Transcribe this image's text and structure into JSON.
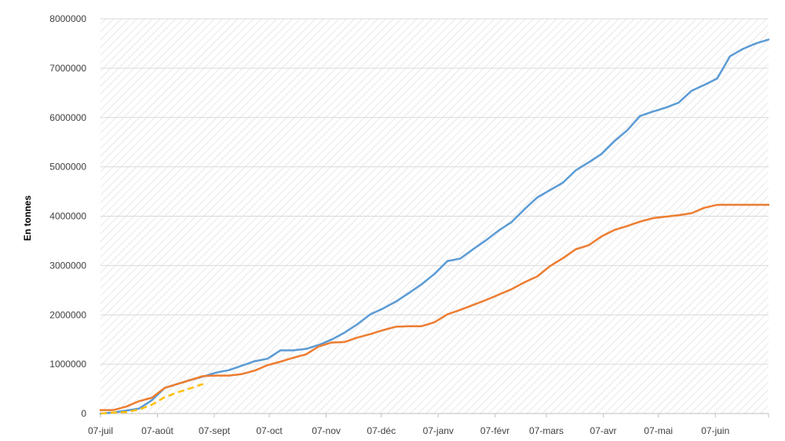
{
  "chart_data": {
    "type": "line",
    "title": "",
    "ylabel": "En tonnes",
    "xlabel": "",
    "ylim": [
      0,
      8000000
    ],
    "y_ticks": [
      0,
      1000000,
      2000000,
      3000000,
      4000000,
      5000000,
      6000000,
      7000000,
      8000000
    ],
    "y_tick_labels": [
      "0",
      "1000000",
      "2000000",
      "3000000",
      "4000000",
      "5000000",
      "6000000",
      "7000000",
      "8000000"
    ],
    "x_tick_labels": [
      "07-juil",
      "07-août",
      "07-sept",
      "07-oct",
      "07-nov",
      "07-déc",
      "07-janv",
      "07-févr",
      "07-mars",
      "07-avr",
      "07-mai",
      "07-juin"
    ],
    "x_tick_weeks": [
      0,
      4.43,
      8.86,
      13.14,
      17.57,
      21.86,
      26.29,
      30.71,
      34.71,
      39.14,
      43.43,
      47.86
    ],
    "x_range_weeks": [
      0,
      52
    ],
    "background": "diagonal hatch",
    "grid": "horizontal",
    "legend": "none",
    "series": [
      {
        "color": "#5B9BD5",
        "style": "solid",
        "x_week": [
          0,
          1,
          2,
          3,
          4,
          5,
          6,
          7,
          8,
          9,
          10,
          11,
          12,
          13,
          14,
          15,
          16,
          17,
          18,
          19,
          20,
          21,
          22,
          23,
          24,
          25,
          26,
          27,
          28,
          29,
          30,
          31,
          32,
          33,
          34,
          35,
          36,
          37,
          38,
          39,
          40,
          41,
          42,
          43,
          44,
          45,
          46,
          47,
          48,
          49,
          50,
          51,
          52
        ],
        "values": [
          0,
          20000,
          60000,
          100000,
          270000,
          520000,
          600000,
          680000,
          750000,
          830000,
          880000,
          970000,
          1060000,
          1110000,
          1280000,
          1280000,
          1310000,
          1390000,
          1500000,
          1640000,
          1810000,
          2010000,
          2130000,
          2270000,
          2440000,
          2620000,
          2830000,
          3090000,
          3140000,
          3330000,
          3510000,
          3710000,
          3880000,
          4140000,
          4380000,
          4530000,
          4680000,
          4930000,
          5090000,
          5260000,
          5520000,
          5740000,
          6030000,
          6120000,
          6200000,
          6300000,
          6540000,
          6660000,
          6790000,
          7240000,
          7390000,
          7500000,
          7580000
        ]
      },
      {
        "color": "#ED7D31",
        "style": "solid",
        "x_week": [
          0,
          1,
          2,
          3,
          4,
          5,
          6,
          7,
          8,
          9,
          10,
          11,
          12,
          13,
          14,
          15,
          16,
          17,
          18,
          19,
          20,
          21,
          22,
          23,
          24,
          25,
          26,
          27,
          28,
          29,
          30,
          31,
          32,
          33,
          34,
          35,
          36,
          37,
          38,
          39,
          40,
          41,
          42,
          43,
          44,
          45,
          46,
          47,
          48,
          49,
          50,
          51,
          52
        ],
        "values": [
          70000,
          70000,
          140000,
          250000,
          320000,
          520000,
          600000,
          680000,
          760000,
          770000,
          770000,
          800000,
          870000,
          980000,
          1050000,
          1130000,
          1200000,
          1360000,
          1440000,
          1450000,
          1540000,
          1610000,
          1690000,
          1760000,
          1770000,
          1770000,
          1850000,
          2010000,
          2100000,
          2200000,
          2300000,
          2410000,
          2520000,
          2660000,
          2780000,
          2990000,
          3150000,
          3330000,
          3410000,
          3590000,
          3720000,
          3800000,
          3890000,
          3960000,
          3990000,
          4020000,
          4060000,
          4170000,
          4230000,
          4230000,
          4230000,
          4230000,
          4230000
        ]
      },
      {
        "color": "#FFC000",
        "style": "dashed",
        "x_week": [
          0,
          1,
          2,
          3,
          4,
          5,
          6,
          7,
          8
        ],
        "values": [
          0,
          20000,
          30000,
          80000,
          180000,
          330000,
          430000,
          510000,
          600000
        ]
      }
    ]
  }
}
